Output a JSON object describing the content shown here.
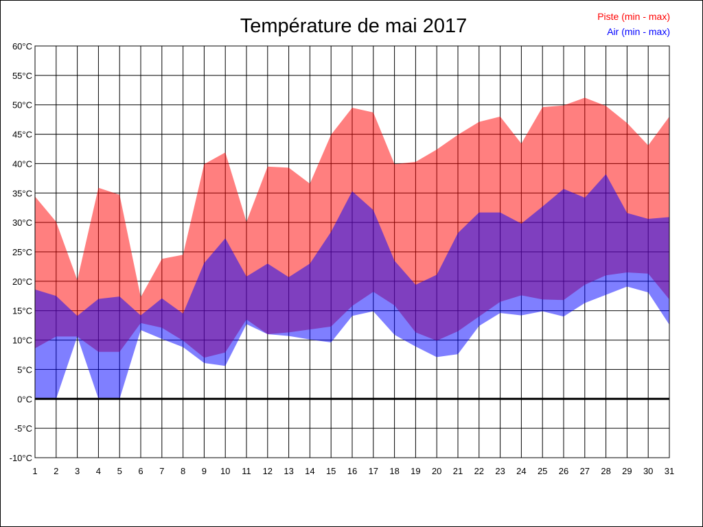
{
  "chart_data": {
    "type": "area",
    "title": "Température de mai 2017",
    "xlabel": "",
    "ylabel": "",
    "x": [
      1,
      2,
      3,
      4,
      5,
      6,
      7,
      8,
      9,
      10,
      11,
      12,
      13,
      14,
      15,
      16,
      17,
      18,
      19,
      20,
      21,
      22,
      23,
      24,
      25,
      26,
      27,
      28,
      29,
      30,
      31
    ],
    "ylim": [
      -10,
      60
    ],
    "y_ticks": [
      "-10°C",
      "-5°C",
      "0°C",
      "5°C",
      "10°C",
      "15°C",
      "20°C",
      "25°C",
      "30°C",
      "35°C",
      "40°C",
      "45°C",
      "50°C",
      "55°C",
      "60°C"
    ],
    "grid": true,
    "legend_position": "top-right",
    "series": [
      {
        "name": "Piste (min - max)",
        "color": "#ff0000",
        "min": [
          8.6,
          10.6,
          10.6,
          8.0,
          8.0,
          12.9,
          12.1,
          9.9,
          7.0,
          7.9,
          13.5,
          11.0,
          11.3,
          11.8,
          12.3,
          15.8,
          18.2,
          15.9,
          11.3,
          9.9,
          11.5,
          14.0,
          16.5,
          17.6,
          16.9,
          16.8,
          19.4,
          21.0,
          21.5,
          21.3,
          16.9
        ],
        "max": [
          34.4,
          30.1,
          20.2,
          35.9,
          34.7,
          17.3,
          23.8,
          24.5,
          39.9,
          41.9,
          30.1,
          39.5,
          39.3,
          36.6,
          44.9,
          49.5,
          48.7,
          39.9,
          40.3,
          42.4,
          44.9,
          47.1,
          48.0,
          43.4,
          49.6,
          49.9,
          51.2,
          49.8,
          46.9,
          43.1,
          48.0
        ]
      },
      {
        "name": "Air (min - max)",
        "color": "#0000ff",
        "min": [
          0,
          0,
          10.6,
          0,
          0,
          11.7,
          10.2,
          8.8,
          6.1,
          5.6,
          12.7,
          11.0,
          10.7,
          10.1,
          9.6,
          14.1,
          14.9,
          10.9,
          8.9,
          7.1,
          7.6,
          12.4,
          14.6,
          14.2,
          14.9,
          14.0,
          16.3,
          17.7,
          19.1,
          18.1,
          12.6
        ],
        "max": [
          18.6,
          17.5,
          14.1,
          17.0,
          17.4,
          14.2,
          17.1,
          14.5,
          23.1,
          27.3,
          20.8,
          23.0,
          20.7,
          23.0,
          28.4,
          35.3,
          32.1,
          23.5,
          19.4,
          21.1,
          28.2,
          31.7,
          31.7,
          29.8,
          32.7,
          35.7,
          34.2,
          38.2,
          31.6,
          30.6,
          30.9
        ]
      }
    ]
  }
}
